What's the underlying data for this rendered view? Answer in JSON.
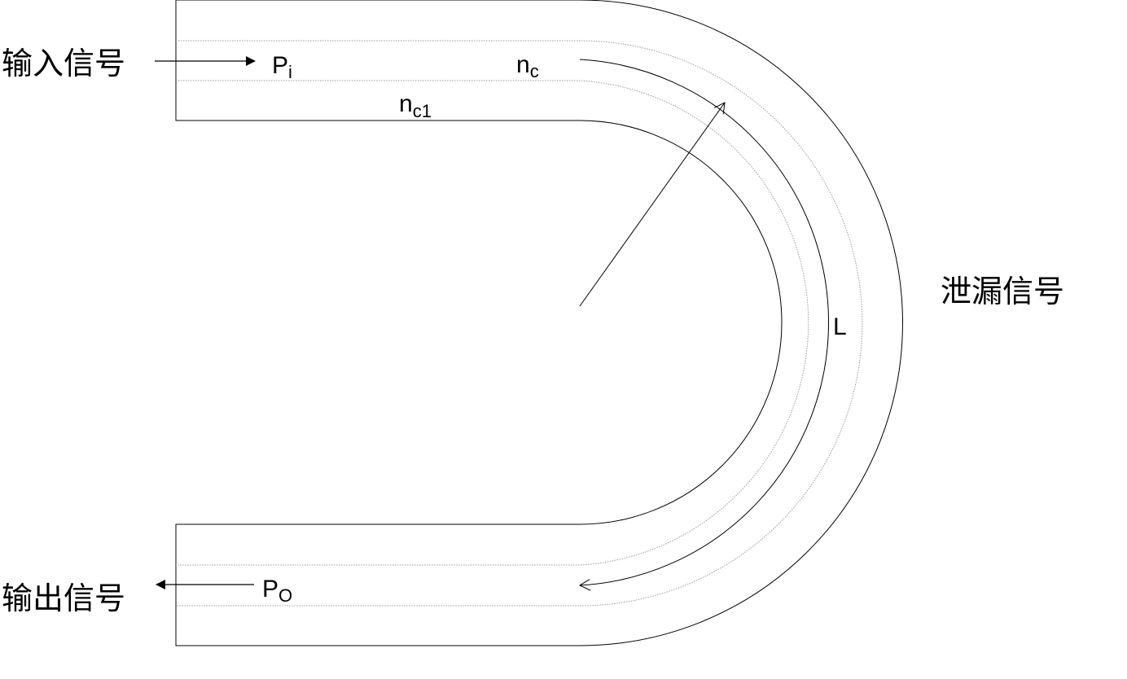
{
  "labels": {
    "input_signal": "输入信号",
    "output_signal": "输出信号",
    "leak_signal": "泄漏信号",
    "input_power": {
      "main": "P",
      "sub": "i"
    },
    "output_power": {
      "main": "P",
      "sub": "O"
    },
    "core_index": {
      "main": "n",
      "sub": "c"
    },
    "cladding_index": {
      "main": "n",
      "sub": "c1"
    },
    "length": "L"
  },
  "colors": {
    "stroke": "#000000",
    "core_boundary": "#9a9a9a",
    "background": "#ffffff"
  }
}
